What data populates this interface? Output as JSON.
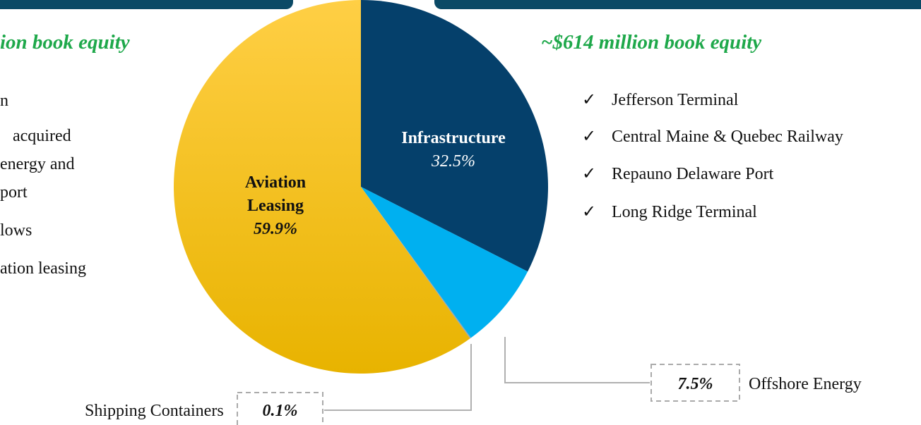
{
  "chart_data": {
    "type": "pie",
    "categories": [
      "Infrastructure",
      "Offshore Energy",
      "Shipping Containers",
      "Aviation Leasing"
    ],
    "values": [
      32.5,
      7.5,
      0.1,
      59.9
    ],
    "value_labels": [
      "32.5%",
      "7.5%",
      "0.1%",
      "59.9%"
    ],
    "colors": [
      "#05406b",
      "#00b0f0",
      "#9aa3ab",
      "#fcc419"
    ]
  },
  "left_panel": {
    "heading": "ion book equity",
    "lines": [
      "n",
      "acquired",
      "energy and",
      "port",
      "lows",
      "ation leasing"
    ]
  },
  "right_panel": {
    "heading": "~$614 million book equity",
    "items": [
      "Jefferson Terminal",
      "Central Maine & Quebec Railway",
      "Repauno Delaware Port",
      "Long Ridge Terminal"
    ]
  }
}
